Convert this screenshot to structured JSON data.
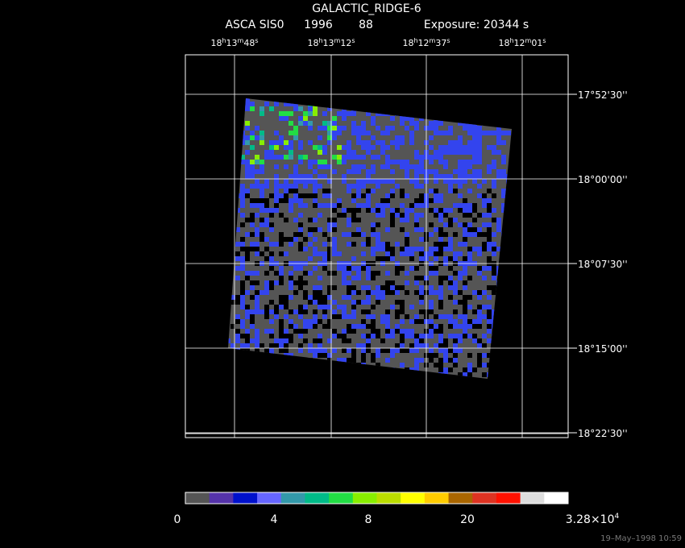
{
  "header": {
    "title": "GALACTIC_RIDGE-6",
    "instrument": "ASCA SIS0",
    "year": "1996",
    "sequence": "88",
    "exposure": "Exposure: 20344 s"
  },
  "ra_labels": [
    [
      {
        "text": "18",
        "sup": "h"
      },
      {
        "text": "13",
        "sup": "m"
      },
      {
        "text": "48",
        "sup": "s"
      }
    ],
    [
      {
        "text": "18",
        "sup": "h"
      },
      {
        "text": "13",
        "sup": "m"
      },
      {
        "text": "12",
        "sup": "s"
      }
    ],
    [
      {
        "text": "18",
        "sup": "h"
      },
      {
        "text": "12",
        "sup": "m"
      },
      {
        "text": "37",
        "sup": "s"
      }
    ],
    [
      {
        "text": "18",
        "sup": "h"
      },
      {
        "text": "12",
        "sup": "m"
      },
      {
        "text": "01",
        "sup": "s"
      }
    ]
  ],
  "dec_labels": [
    "17°52'30''",
    "18°00'00''",
    "18°07'30''",
    "18°15'00''",
    "18°22'30''"
  ],
  "colorbar": {
    "colors": [
      "#555555",
      "#5533aa",
      "#0011cc",
      "#6666ff",
      "#3399aa",
      "#00bb88",
      "#22dd44",
      "#88ee00",
      "#bbdd00",
      "#ffff00",
      "#ffcc00",
      "#aa6600",
      "#dd3322",
      "#ff1100",
      "#dddddd",
      "#ffffff"
    ],
    "labels": [
      "0",
      "4",
      "8",
      "20",
      {
        "base": "3.28×10",
        "exp": "4"
      }
    ]
  },
  "footer": "19–May–1998 10:59"
}
